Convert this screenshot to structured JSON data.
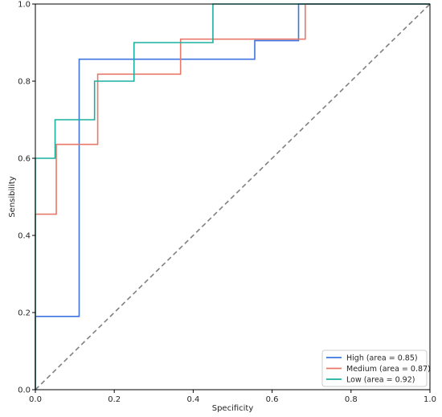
{
  "chart_data": {
    "type": "line",
    "title": "",
    "xlabel": "Specificity",
    "ylabel": "Sensibility",
    "xlim": [
      0.0,
      1.0
    ],
    "ylim": [
      0.0,
      1.0
    ],
    "xticks": [
      "0.0",
      "0.2",
      "0.4",
      "0.6",
      "0.8",
      "1.0"
    ],
    "yticks": [
      "0.0",
      "0.2",
      "0.4",
      "0.6",
      "0.8",
      "1.0"
    ],
    "grid": false,
    "legend_position": "lower-right",
    "series": [
      {
        "name": "High (area = 0.85)",
        "color": "#3d74e0",
        "x": [
          0.0,
          0.0,
          0.111,
          0.111,
          0.556,
          0.556,
          0.667,
          0.667,
          1.0
        ],
        "y": [
          0.0,
          0.19,
          0.19,
          0.857,
          0.857,
          0.905,
          0.905,
          1.0,
          1.0
        ]
      },
      {
        "name": "Medium (area = 0.87)",
        "color": "#e8786a",
        "x": [
          0.0,
          0.0,
          0.053,
          0.053,
          0.158,
          0.158,
          0.368,
          0.368,
          0.684,
          0.684,
          1.0
        ],
        "y": [
          0.0,
          0.455,
          0.455,
          0.636,
          0.636,
          0.818,
          0.818,
          0.909,
          0.909,
          1.0,
          1.0
        ]
      },
      {
        "name": "Low (area = 0.92)",
        "color": "#1ab0a0",
        "x": [
          0.0,
          0.0,
          0.05,
          0.05,
          0.15,
          0.15,
          0.25,
          0.25,
          0.45,
          0.45,
          1.0
        ],
        "y": [
          0.0,
          0.6,
          0.6,
          0.7,
          0.7,
          0.8,
          0.8,
          0.9,
          0.9,
          1.0,
          1.0
        ]
      }
    ],
    "reference_line": {
      "x": [
        0.0,
        1.0
      ],
      "y": [
        0.0,
        1.0
      ],
      "color": "#808080",
      "style": "dashed"
    },
    "legend": [
      {
        "label": "High (area = 0.85)",
        "color": "#3d74e0"
      },
      {
        "label": "Medium (area = 0.87)",
        "color": "#e8786a"
      },
      {
        "label": "Low (area = 0.92)",
        "color": "#1ab0a0"
      }
    ]
  }
}
